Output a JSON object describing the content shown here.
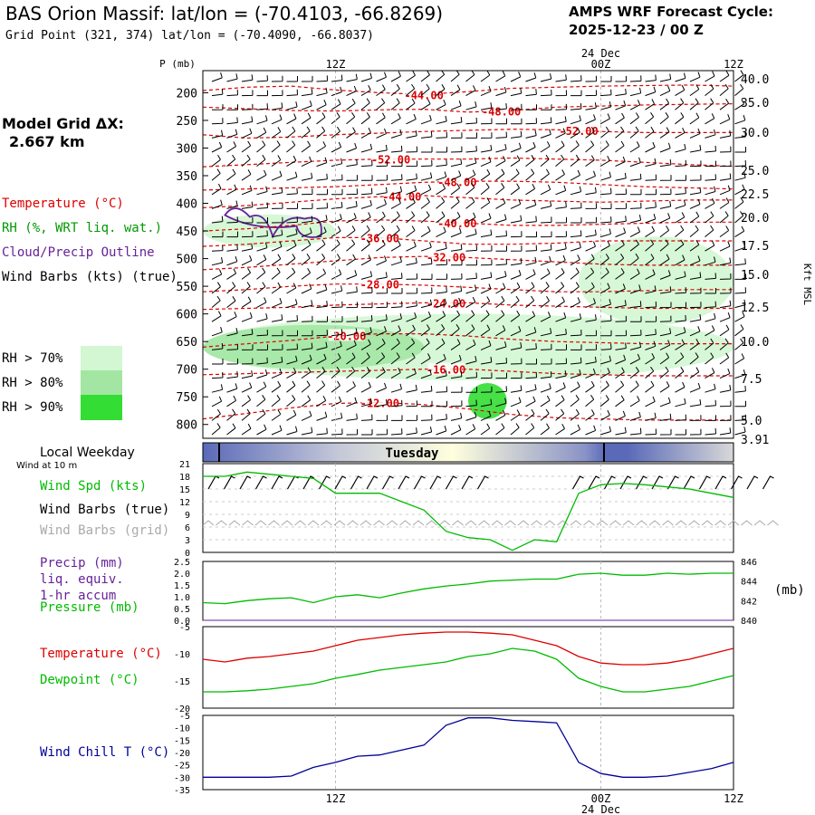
{
  "header": {
    "title": "BAS Orion Massif:  lat/lon = (-70.4103, -66.8269)",
    "subtitle": "Grid Point (321, 374) lat/lon = (-70.4090, -66.8037)",
    "cycle_label": "AMPS WRF Forecast Cycle:",
    "cycle_value": "2025-12-23 / 00  Z",
    "model_grid_label": "Model Grid ΔX:",
    "model_grid_value": "2.667 km"
  },
  "colors": {
    "temperature": "#dd0000",
    "rh": "#009900",
    "cloud": "#662299",
    "dewpoint": "#00bb00",
    "windchill": "#000099",
    "grid_barbs": "#999999",
    "rh70": "#d2f7d2",
    "rh80": "#a3e6a3",
    "rh90": "#33dd33"
  },
  "legend": {
    "temperature": "Temperature (°C)",
    "rh": "RH (%, WRT liq. wat.)",
    "cloud": "Cloud/Precip Outline",
    "wind": "Wind Barbs (kts) (true)",
    "rh_boxes": [
      "RH > 70%",
      "RH > 80%",
      "RH > 90%"
    ],
    "local_weekday": "Local Weekday",
    "wind_10m": "Wind at 10 m",
    "weekday": "Tuesday"
  },
  "time_axis": {
    "top_date": "24 Dec",
    "bottom_date": "24 Dec",
    "ticks": [
      "12Z",
      "00Z",
      "12Z"
    ]
  },
  "chart_data": [
    {
      "type": "contour",
      "id": "cross_section",
      "ylabel_left": "P (mb)",
      "ylabel_right": "Kft MSL",
      "pressure_ticks": [
        "200",
        "250",
        "300",
        "350",
        "400",
        "450",
        "500",
        "550",
        "600",
        "650",
        "700",
        "750",
        "800"
      ],
      "pressure_values": [
        200,
        250,
        300,
        350,
        400,
        450,
        500,
        550,
        600,
        650,
        700,
        750,
        800
      ],
      "height_ticks": [
        "40.0",
        "35.0",
        "30.0",
        "25.0",
        "22.5",
        "20.0",
        "17.5",
        "15.0",
        "12.5",
        "10.0",
        "7.5",
        "5.0",
        "3.91"
      ],
      "height_values": [
        40.0,
        35.0,
        30.0,
        25.0,
        22.5,
        20.0,
        17.5,
        15.0,
        12.5,
        10.0,
        7.5,
        5.0,
        3.91
      ],
      "ylim_mb": [
        160,
        825
      ],
      "time_hours": [
        0,
        48
      ],
      "temperature_contours": [
        {
          "value": -44,
          "label": "-44.00",
          "label_hour": 20,
          "mb": [
            196,
            190,
            188,
            195,
            200,
            203,
            198,
            192,
            190,
            188,
            187,
            186,
            188
          ]
        },
        {
          "value": -48,
          "label": "-48.00",
          "label_hour": 27,
          "mb": [
            226,
            229,
            232,
            233,
            231,
            230,
            235,
            232,
            226,
            224,
            222,
            221,
            220
          ]
        },
        {
          "value": -52,
          "label": "-52.00",
          "label_hour": 34,
          "mb": [
            276,
            282,
            280,
            276,
            273,
            270,
            268,
            266,
            267,
            270,
            272,
            272,
            272
          ]
        },
        {
          "value": -52,
          "label": "-52.00",
          "label_hour": 17,
          "mb": [
            334,
            330,
            326,
            322,
            320,
            320,
            320,
            318,
            320,
            322,
            326,
            330,
            333
          ]
        },
        {
          "value": -48,
          "label": "-48.00",
          "label_hour": 23,
          "mb": [
            376,
            374,
            372,
            370,
            366,
            362,
            360,
            360,
            362,
            366,
            370,
            372,
            374
          ]
        },
        {
          "value": -44,
          "label": "-44.00",
          "label_hour": 18,
          "mb": [
            408,
            404,
            398,
            392,
            388,
            386,
            390,
            394,
            396,
            398,
            396,
            394,
            394
          ]
        },
        {
          "value": -40,
          "label": "-40.00",
          "label_hour": 23,
          "mb": [
            450,
            446,
            440,
            432,
            430,
            432,
            436,
            440,
            440,
            438,
            436,
            434,
            434
          ]
        },
        {
          "value": -36,
          "label": "-36.00",
          "label_hour": 16,
          "mb": [
            478,
            474,
            468,
            462,
            462,
            468,
            474,
            474,
            472,
            468,
            468,
            468,
            468
          ]
        },
        {
          "value": -32,
          "label": "-32.00",
          "label_hour": 22,
          "mb": [
            520,
            516,
            510,
            504,
            498,
            496,
            498,
            502,
            506,
            510,
            512,
            512,
            512
          ]
        },
        {
          "value": -28,
          "label": "-28.00",
          "label_hour": 16,
          "mb": [
            560,
            556,
            550,
            546,
            546,
            548,
            552,
            556,
            560,
            560,
            558,
            556,
            556
          ]
        },
        {
          "value": -24,
          "label": "-24.00",
          "label_hour": 22,
          "mb": [
            592,
            590,
            588,
            584,
            582,
            580,
            580,
            584,
            586,
            588,
            590,
            590,
            590
          ]
        },
        {
          "value": -20,
          "label": "-20.00",
          "label_hour": 13,
          "mb": [
            660,
            654,
            648,
            640,
            636,
            636,
            640,
            646,
            650,
            652,
            654,
            654,
            654
          ]
        },
        {
          "value": -16,
          "label": "-16.00",
          "label_hour": 22,
          "mb": [
            710,
            708,
            706,
            704,
            702,
            700,
            700,
            704,
            708,
            710,
            712,
            712,
            712
          ]
        },
        {
          "value": -12,
          "label": "-12.00",
          "label_hour": 16,
          "mb": [
            790,
            780,
            770,
            762,
            760,
            764,
            772,
            782,
            788,
            790,
            792,
            792,
            792
          ]
        }
      ],
      "rh_regions": [
        {
          "level": ">70%",
          "hour_range": [
            0,
            48
          ],
          "mb_range": [
            600,
            720
          ]
        },
        {
          "level": ">80%",
          "hour_range": [
            0,
            20
          ],
          "mb_range": [
            620,
            700
          ]
        },
        {
          "level": ">90%",
          "hour_range": [
            24,
            27.5
          ],
          "mb_range": [
            725,
            790
          ]
        },
        {
          "level": ">70%",
          "hour_range": [
            0,
            12
          ],
          "mb_range": [
            420,
            480
          ]
        },
        {
          "level": ">70%",
          "hour_range": [
            34,
            48
          ],
          "mb_range": [
            460,
            620
          ]
        }
      ],
      "cloud_outline": {
        "hour_range": [
          2,
          11
        ],
        "mb_range": [
          405,
          460
        ]
      }
    },
    {
      "type": "line",
      "id": "wind_speed_10m",
      "ylabel": "Wind Spd (kts)",
      "extra_labels": [
        "Wind Barbs (true)",
        "Wind Barbs (grid)"
      ],
      "yticks": [
        "0",
        "3",
        "6",
        "9",
        "12",
        "15",
        "18",
        "21"
      ],
      "ylim": [
        0,
        21
      ],
      "hours": [
        0,
        2,
        4,
        6,
        8,
        10,
        12,
        14,
        16,
        18,
        20,
        22,
        24,
        26,
        28,
        30,
        32,
        34,
        36,
        38,
        40,
        42,
        44,
        46,
        48
      ],
      "values": [
        18,
        18,
        19,
        18.5,
        18,
        17.5,
        14,
        14,
        14,
        12,
        10,
        5,
        3.5,
        3,
        0.5,
        3,
        2.5,
        14,
        16,
        16.3,
        16,
        15.5,
        15,
        14,
        13
      ]
    },
    {
      "type": "line",
      "id": "precip_pressure",
      "ylabel": "Precip (mm)",
      "ylabel_lines": [
        "liq. equiv.",
        "1-hr accum"
      ],
      "ylabel2": "Pressure (mb)",
      "right_unit": "(mb)",
      "yticks": [
        "0.0",
        "0.5",
        "1.0",
        "1.5",
        "2.0",
        "2.5"
      ],
      "ylim": [
        0,
        2.5
      ],
      "yticks_right": [
        "840",
        "842",
        "844",
        "846"
      ],
      "ylim_right": [
        840,
        846
      ],
      "hours": [
        0,
        2,
        4,
        6,
        8,
        10,
        12,
        14,
        16,
        18,
        20,
        22,
        24,
        26,
        28,
        30,
        32,
        34,
        36,
        38,
        40,
        42,
        44,
        46,
        48
      ],
      "pressure": [
        841.8,
        841.7,
        842.0,
        842.2,
        842.3,
        841.8,
        842.4,
        842.6,
        842.3,
        842.8,
        843.2,
        843.5,
        843.7,
        844.0,
        844.1,
        844.2,
        844.2,
        844.7,
        844.8,
        844.6,
        844.6,
        844.8,
        844.7,
        844.8,
        844.8
      ],
      "precip": [
        0,
        0,
        0,
        0,
        0,
        0,
        0,
        0,
        0,
        0,
        0,
        0,
        0,
        0,
        0,
        0,
        0,
        0,
        0,
        0,
        0,
        0,
        0,
        0,
        0
      ]
    },
    {
      "type": "line",
      "id": "temperature_dewpoint",
      "series": [
        {
          "name": "Temperature (°C)",
          "values": [
            -11,
            -11.5,
            -10.8,
            -10.5,
            -10,
            -9.5,
            -8.5,
            -7.5,
            -7,
            -6.5,
            -6.2,
            -6,
            -6,
            -6.2,
            -6.5,
            -7.5,
            -8.5,
            -10.5,
            -11.7,
            -12,
            -12,
            -11.7,
            -11,
            -10,
            -9
          ]
        },
        {
          "name": "Dewpoint (°C)",
          "values": [
            -17,
            -17,
            -16.8,
            -16.5,
            -16,
            -15.5,
            -14.5,
            -13.8,
            -13,
            -12.5,
            -12,
            -11.5,
            -10.5,
            -10,
            -9,
            -9.5,
            -11,
            -14.5,
            -16,
            -17,
            -17,
            -16.5,
            -16,
            -15,
            -14
          ]
        }
      ],
      "hours": [
        0,
        2,
        4,
        6,
        8,
        10,
        12,
        14,
        16,
        18,
        20,
        22,
        24,
        26,
        28,
        30,
        32,
        34,
        36,
        38,
        40,
        42,
        44,
        46,
        48
      ],
      "yticks": [
        "-5",
        "-10",
        "-15",
        "-20"
      ],
      "ylim": [
        -20,
        -5
      ]
    },
    {
      "type": "line",
      "id": "wind_chill",
      "ylabel": "Wind Chill T (°C)",
      "yticks": [
        "-5",
        "-10",
        "-15",
        "-20",
        "-25",
        "-30",
        "-35"
      ],
      "ylim": [
        -35,
        -5
      ],
      "hours": [
        0,
        2,
        4,
        6,
        8,
        10,
        12,
        14,
        16,
        18,
        20,
        22,
        24,
        26,
        28,
        30,
        32,
        34,
        36,
        38,
        40,
        42,
        44,
        46,
        48
      ],
      "values": [
        -30,
        -30,
        -30,
        -30,
        -29.5,
        -26,
        -24,
        -21.5,
        -21,
        -19,
        -17,
        -9,
        -6,
        -6,
        -7,
        -7.5,
        -8,
        -24,
        -28.5,
        -30,
        -30,
        -29.5,
        -28,
        -26.5,
        -24
      ]
    }
  ]
}
